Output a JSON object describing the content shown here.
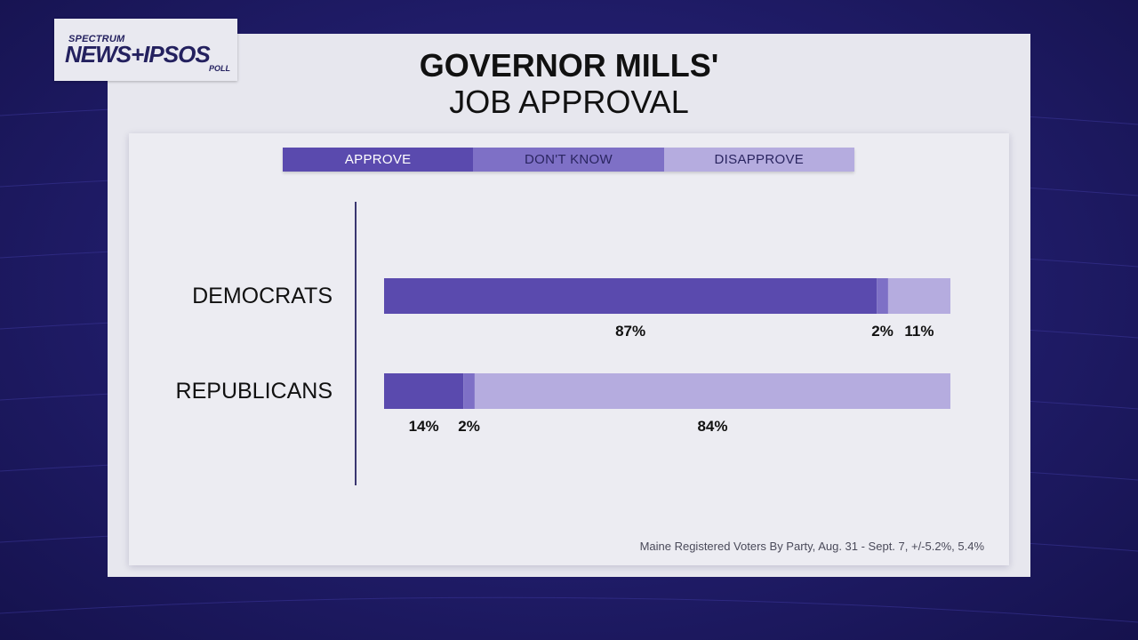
{
  "logo": {
    "top": "SPECTRUM",
    "main": "NEWS+IPSOS",
    "sub": "POLL"
  },
  "title": "GOVERNOR MILLS'",
  "subtitle": "JOB APPROVAL",
  "footnote": "Maine Registered Voters By Party, Aug. 31 - Sept. 7, +/-5.2%, 5.4%",
  "colors": {
    "approve": "#5a4aae",
    "dont_know": "#7e70c6",
    "disapprove": "#b5acdf"
  },
  "chart_data": {
    "type": "bar",
    "orientation": "horizontal",
    "stacked": true,
    "categories": [
      "DEMOCRATS",
      "REPUBLICANS"
    ],
    "series": [
      {
        "name": "APPROVE",
        "values": [
          87,
          14
        ],
        "labels": [
          "87%",
          "14%"
        ]
      },
      {
        "name": "DON'T KNOW",
        "values": [
          2,
          2
        ],
        "labels": [
          "2%",
          "2%"
        ]
      },
      {
        "name": "DISAPPROVE",
        "values": [
          11,
          84
        ],
        "labels": [
          "11%",
          "84%"
        ]
      }
    ],
    "xlim": [
      0,
      100
    ],
    "legend": "top",
    "grid": false
  }
}
